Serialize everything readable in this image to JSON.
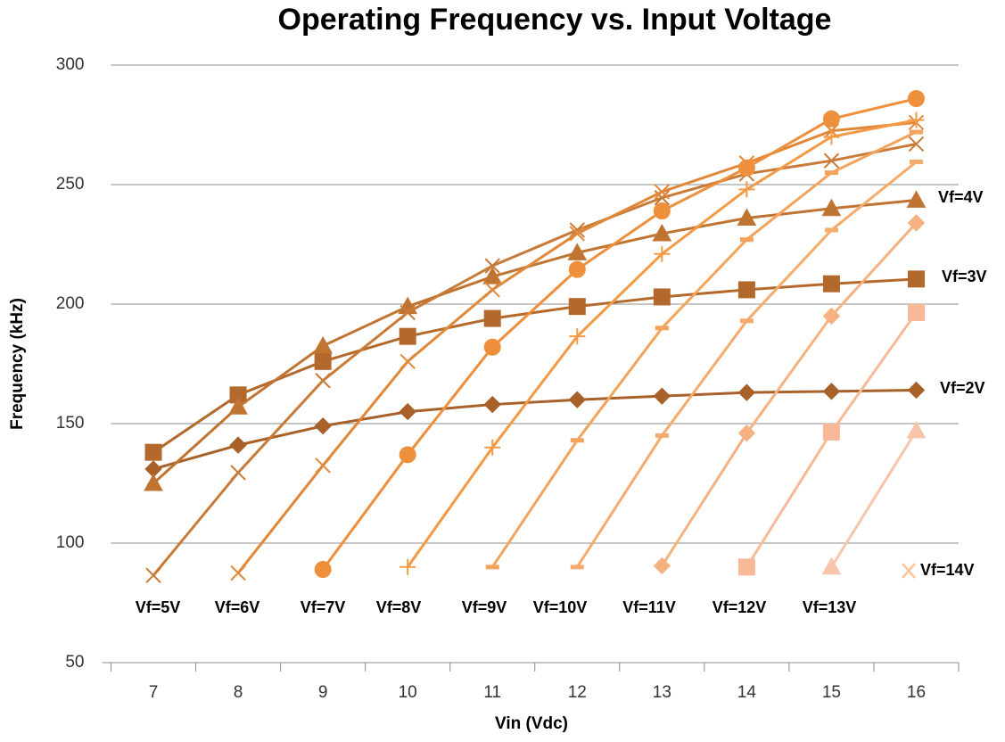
{
  "chart_data": {
    "type": "line",
    "title": "Operating Frequency vs. Input Voltage",
    "x_label": "Vin (Vdc)",
    "y_label": "Frequency (kHz)",
    "categories": [
      "7",
      "8",
      "9",
      "10",
      "11",
      "12",
      "13",
      "14",
      "15",
      "16"
    ],
    "ylim": [
      50,
      300
    ],
    "yticks": [
      50,
      100,
      150,
      200,
      250,
      300
    ],
    "grid": true,
    "series": [
      {
        "name": "Vf=2V",
        "color": "#a86128",
        "marker": "diamond",
        "values": [
          131,
          141,
          149,
          155,
          158,
          160,
          161.5,
          163,
          163.5,
          164
        ]
      },
      {
        "name": "Vf=3V",
        "color": "#b4692c",
        "marker": "square",
        "values": [
          138,
          162,
          176,
          186.5,
          194,
          199,
          203,
          206,
          208.5,
          210.5
        ]
      },
      {
        "name": "Vf=4V",
        "color": "#c07432",
        "marker": "triangle",
        "values": [
          125,
          157,
          182.5,
          199,
          211.5,
          221.5,
          229.5,
          236,
          240,
          243.5
        ]
      },
      {
        "name": "Vf=5V",
        "color": "#c87b38",
        "marker": "x",
        "values": [
          86.5,
          129.5,
          168,
          196.5,
          216,
          231,
          244.5,
          254.5,
          260,
          267
        ]
      },
      {
        "name": "Vf=6V",
        "color": "#e0883a",
        "marker": "x",
        "values": [
          null,
          87.5,
          132.5,
          176,
          206,
          229.5,
          247,
          259,
          272.5,
          276
        ]
      },
      {
        "name": "Vf=7V",
        "color": "#ee8f3c",
        "marker": "circle",
        "values": [
          null,
          null,
          89,
          137,
          182,
          214.5,
          239,
          257,
          277.5,
          286
        ]
      },
      {
        "name": "Vf=8V",
        "color": "#f39a45",
        "marker": "plus",
        "values": [
          null,
          null,
          null,
          90,
          140,
          186.5,
          221,
          248,
          270,
          277
        ]
      },
      {
        "name": "Vf=9V",
        "color": "#f3a35c",
        "marker": "dash",
        "values": [
          null,
          null,
          null,
          null,
          90,
          143,
          190,
          227,
          255,
          272
        ]
      },
      {
        "name": "Vf=10V",
        "color": "#f4ab6c",
        "marker": "dash",
        "values": [
          null,
          null,
          null,
          null,
          null,
          90,
          145,
          193,
          231,
          259.5
        ]
      },
      {
        "name": "Vf=11V",
        "color": "#f5b280",
        "marker": "diamond",
        "values": [
          null,
          null,
          null,
          null,
          null,
          null,
          90.5,
          146,
          195,
          234
        ]
      },
      {
        "name": "Vf=12V",
        "color": "#f7b998",
        "marker": "square",
        "values": [
          null,
          null,
          null,
          null,
          null,
          null,
          null,
          90,
          146.5,
          196.5
        ]
      },
      {
        "name": "Vf=13V",
        "color": "#f8c4aa",
        "marker": "triangle",
        "values": [
          null,
          null,
          null,
          null,
          null,
          null,
          null,
          null,
          90,
          147
        ]
      },
      {
        "name": "Vf=14V",
        "color": "#f9c49c",
        "marker": "x",
        "values": [
          null,
          null,
          null,
          null,
          null,
          null,
          null,
          null,
          null,
          null
        ]
      }
    ]
  }
}
